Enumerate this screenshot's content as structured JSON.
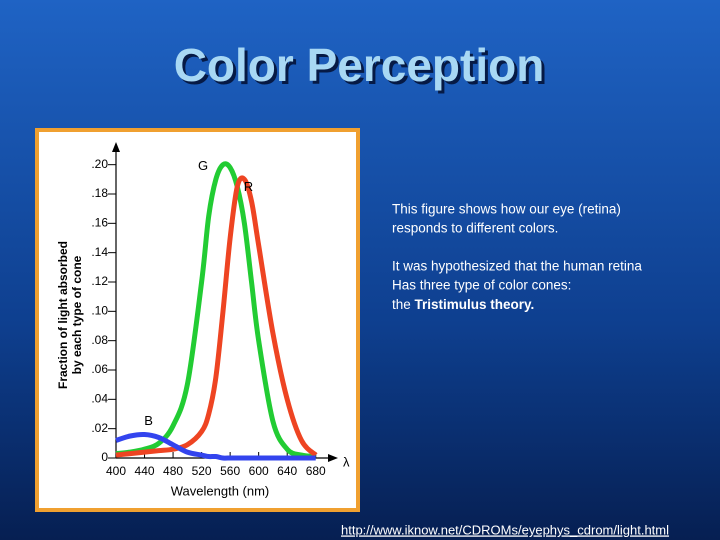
{
  "title": "Color Perception",
  "paragraphs": [
    [
      "This figure shows how our eye (retina)",
      "responds to different colors."
    ],
    [
      "It was hypothesized that the human retina",
      "Has three type of color cones:"
    ]
  ],
  "emphasis_line": {
    "prefix": "the ",
    "bold": "Tristimulus theory."
  },
  "link": "http://www.iknow.net/CDROMs/eyephys_cdrom/light.html",
  "chart_data": {
    "type": "line",
    "xlabel": "Wavelength (nm)",
    "ylabel": [
      "Fraction of light absorbed",
      "by each type of cone"
    ],
    "x_axis_symbol": "λ",
    "x": [
      400,
      420,
      440,
      460,
      480,
      500,
      520,
      530,
      540,
      550,
      560,
      570,
      580,
      590,
      600,
      620,
      640,
      660,
      680
    ],
    "series": [
      {
        "name": "G",
        "color": "#22cc33",
        "values": [
          0.003,
          0.004,
          0.006,
          0.01,
          0.022,
          0.05,
          0.12,
          0.165,
          0.19,
          0.2,
          0.198,
          0.185,
          0.16,
          0.12,
          0.08,
          0.025,
          0.006,
          0.002,
          0.001
        ]
      },
      {
        "name": "R",
        "color": "#ee4422",
        "values": [
          0.002,
          0.003,
          0.004,
          0.005,
          0.006,
          0.009,
          0.018,
          0.03,
          0.055,
          0.1,
          0.15,
          0.185,
          0.19,
          0.175,
          0.145,
          0.085,
          0.04,
          0.012,
          0.002
        ]
      },
      {
        "name": "B",
        "color": "#3344ee",
        "values": [
          0.012,
          0.015,
          0.016,
          0.014,
          0.009,
          0.004,
          0.002,
          0.001,
          0.001,
          0,
          0,
          0,
          0,
          0,
          0,
          0,
          0,
          0,
          0
        ]
      }
    ],
    "xlim": [
      400,
      700
    ],
    "ylim": [
      0,
      0.21
    ],
    "xticks": [
      400,
      440,
      480,
      520,
      560,
      600,
      640,
      680
    ],
    "yticks": [
      0,
      {
        "value": 0.02,
        "label": ".02"
      },
      {
        "value": 0.04,
        "label": ".04"
      },
      {
        "value": 0.06,
        "label": ".06"
      },
      {
        "value": 0.08,
        "label": ".08"
      },
      {
        "value": 0.1,
        "label": ".10"
      },
      {
        "value": 0.12,
        "label": ".12"
      },
      {
        "value": 0.14,
        "label": ".14"
      },
      {
        "value": 0.16,
        "label": ".16"
      },
      {
        "value": 0.18,
        "label": ".18"
      },
      {
        "value": 0.2,
        "label": ".20"
      }
    ]
  }
}
